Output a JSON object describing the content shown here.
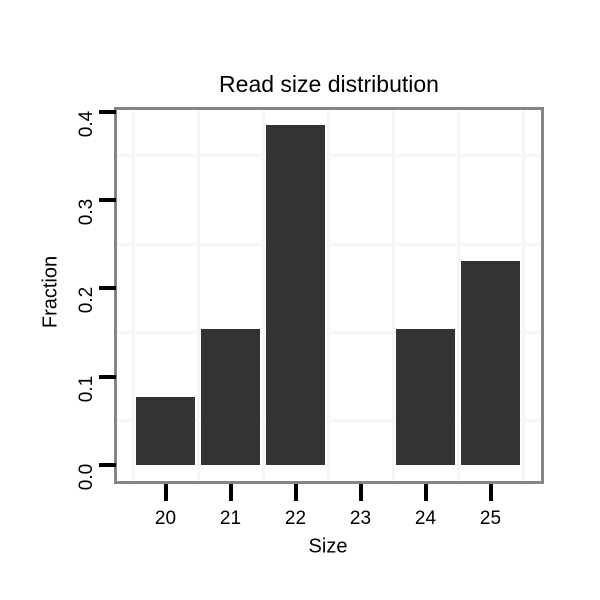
{
  "chart": {
    "title": "Read size distribution",
    "xlabel": "Size",
    "ylabel": "Fraction"
  },
  "chart_data": {
    "type": "bar",
    "title": "Read size distribution",
    "xlabel": "Size",
    "ylabel": "Fraction",
    "categories": [
      "20",
      "21",
      "22",
      "23",
      "24",
      "25"
    ],
    "values": [
      0.0769,
      0.1538,
      0.3846,
      0,
      0.1538,
      0.2308
    ],
    "ytick_labels": [
      "0.0",
      "0.1",
      "0.2",
      "0.3",
      "0.4"
    ],
    "ytick_values": [
      0.0,
      0.1,
      0.2,
      0.3,
      0.4
    ],
    "yminor_gridlines": [
      0.05,
      0.15,
      0.25,
      0.35
    ],
    "ylim": [
      -0.018,
      0.405
    ],
    "legend": "none",
    "grid": "minor-only",
    "colors": {
      "bar": "#333333",
      "panel_border": "#858585",
      "gridline": "#f8f5f5",
      "tick": "#000000",
      "text": "#000000",
      "background": "#ffffff"
    }
  }
}
